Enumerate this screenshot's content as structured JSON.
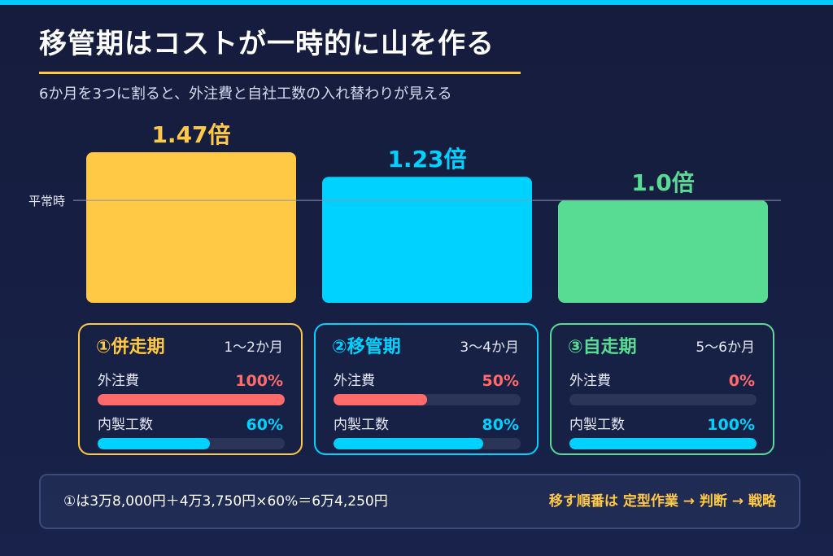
{
  "header": {
    "title": "移管期はコストが一時的に山を作る",
    "subtitle": "6か月を3つに割ると、外注費と自社工数の入れ替わりが見える"
  },
  "colors": {
    "accent_stripe": "#00ccff",
    "yellow": "#ffc845",
    "cyan": "#00d2ff",
    "green": "#58dc94",
    "red": "#ff6b6b"
  },
  "chart_data": {
    "type": "bar",
    "categories": [
      "①併走期",
      "②移管期",
      "③自走期"
    ],
    "values": [
      1.47,
      1.23,
      1.0
    ],
    "value_labels": [
      "1.47倍",
      "1.23倍",
      "1.0倍"
    ],
    "bar_colors": [
      "#ffc845",
      "#00d2ff",
      "#58dc94"
    ],
    "reference_line": {
      "label": "平常時",
      "value": 1.0
    },
    "ylim": [
      0,
      1.6
    ],
    "grid": false
  },
  "phases": [
    {
      "name": "①併走期",
      "period": "1〜2か月",
      "color": "#ffc845",
      "outsourcing_label": "外注費",
      "outsourcing_pct_text": "100%",
      "outsourcing_pct": 100,
      "inhouse_label": "内製工数",
      "inhouse_pct_text": "60%",
      "inhouse_pct": 60
    },
    {
      "name": "②移管期",
      "period": "3〜4か月",
      "color": "#00d2ff",
      "outsourcing_label": "外注費",
      "outsourcing_pct_text": "50%",
      "outsourcing_pct": 50,
      "inhouse_label": "内製工数",
      "inhouse_pct_text": "80%",
      "inhouse_pct": 80
    },
    {
      "name": "③自走期",
      "period": "5〜6か月",
      "color": "#58dc94",
      "outsourcing_label": "外注費",
      "outsourcing_pct_text": "0%",
      "outsourcing_pct": 0,
      "inhouse_label": "内製工数",
      "inhouse_pct_text": "100%",
      "inhouse_pct": 100
    }
  ],
  "footer": {
    "formula": "①は3万8,000円＋4万3,750円×60%＝6万4,250円",
    "order": "移す順番は 定型作業 → 判断 → 戦略"
  }
}
